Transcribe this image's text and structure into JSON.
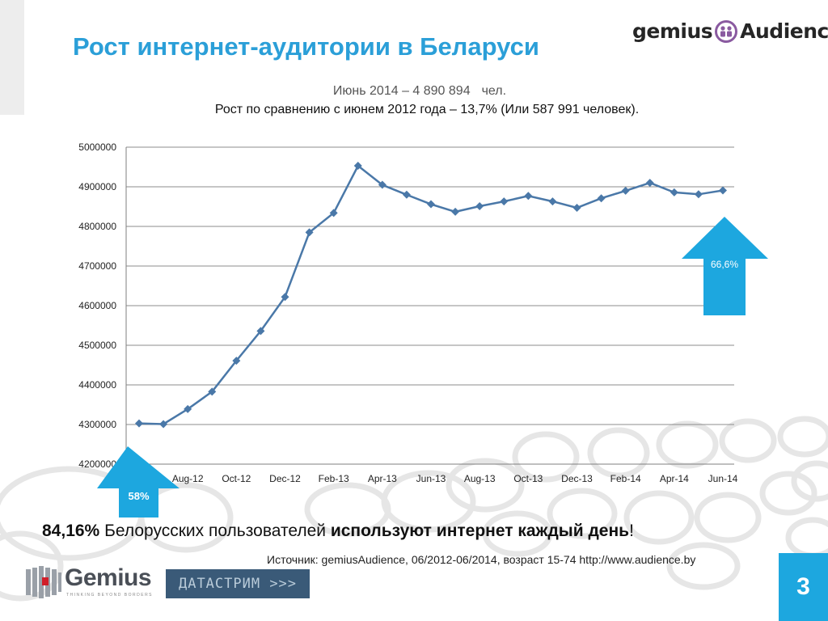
{
  "slide": {
    "title": "Рост интернет-аудитории в Беларуси",
    "brand": {
      "word1": "gemius",
      "word2": "Audience",
      "icon": "people-icon"
    },
    "subtitle_line1_prefix": "Июнь 2014 – 4 890 894",
    "subtitle_line1_suffix": "чел.",
    "subtitle_line2": "Рост по сравнению с июнем 2012 года –  13,7% (Или 587 991  человек).",
    "bottom_value": "84,16%",
    "bottom_middle": " Белорусских пользователей ",
    "bottom_bold": "используют интернет каждый день",
    "bottom_end": "!",
    "source": "Источник: gemiusAudience,  06/2012-06/2014, возраст 15-74 http://www.audience.by",
    "page_number": "3",
    "footer_logo_word": "Gemius",
    "footer_logo_tagline": "THINKING BEYOND BORDERS",
    "footer_logo2": "ДАТАСТРИМ >>>",
    "arrow_left_label": "58%",
    "arrow_right_label": "66,6%"
  },
  "colors": {
    "title": "#2b9fd8",
    "line": "#4a78a8",
    "arrow": "#1da7df",
    "page_box": "#1da7df"
  },
  "chart_data": {
    "type": "line",
    "categories": [
      "Jun-12",
      "Jul-12",
      "Aug-12",
      "Sep-12",
      "Oct-12",
      "Nov-12",
      "Dec-12",
      "Jan-13",
      "Feb-13",
      "Mar-13",
      "Apr-13",
      "May-13",
      "Jun-13",
      "Jul-13",
      "Aug-13",
      "Sep-13",
      "Oct-13",
      "Nov-13",
      "Dec-13",
      "Jan-14",
      "Feb-14",
      "Mar-14",
      "Apr-14",
      "May-14",
      "Jun-14"
    ],
    "tick_labels": [
      "Jun-12",
      "Aug-12",
      "Oct-12",
      "Dec-12",
      "Feb-13",
      "Apr-13",
      "Jun-13",
      "Aug-13",
      "Oct-13",
      "Dec-13",
      "Feb-14",
      "Apr-14",
      "Jun-14"
    ],
    "series": [
      {
        "values": [
          4302903,
          4301000,
          4339000,
          4383000,
          4461000,
          4536000,
          4622000,
          4785000,
          4834000,
          4953000,
          4905000,
          4880000,
          4856000,
          4837000,
          4851000,
          4863000,
          4877000,
          4863000,
          4847000,
          4871000,
          4890000,
          4910000,
          4886000,
          4881000,
          4890894
        ]
      }
    ],
    "ylim": [
      4200000,
      5000000
    ],
    "yticks": [
      4200000,
      4300000,
      4400000,
      4500000,
      4600000,
      4700000,
      4800000,
      4900000,
      5000000
    ],
    "grid": true,
    "legend": "none"
  }
}
